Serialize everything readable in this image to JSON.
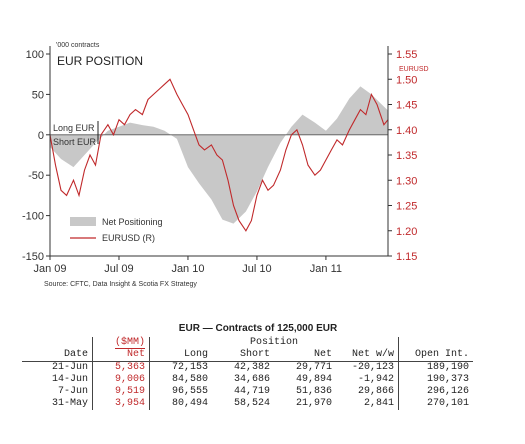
{
  "chart_data": {
    "type": "area",
    "title": "EUR POSITION",
    "units_note": "'000 contracts",
    "right_axis_label": "EURUSD",
    "source": "Source: CFTC, Data Insight & Scotia FX Strategy",
    "left_axis": {
      "ylim": [
        -150,
        100
      ],
      "ticks": [
        "100",
        "50",
        "0",
        "-50",
        "-100",
        "-150"
      ],
      "tick_values": [
        100,
        50,
        0,
        -50,
        -100,
        -150
      ]
    },
    "right_axis": {
      "ylim": [
        1.15,
        1.55
      ],
      "ticks": [
        "1.55",
        "1.50",
        "1.45",
        "1.40",
        "1.35",
        "1.30",
        "1.25",
        "1.20",
        "1.15"
      ],
      "tick_values": [
        1.55,
        1.5,
        1.45,
        1.4,
        1.35,
        1.3,
        1.25,
        1.2,
        1.15
      ]
    },
    "x_axis": {
      "ticks": [
        "Jan 09",
        "Jul 09",
        "Jan 10",
        "Jul 10",
        "Jan 11"
      ],
      "tick_values": [
        2009.0,
        2009.5,
        2010.0,
        2010.5,
        2011.0
      ],
      "xlim": [
        2009.0,
        2011.45
      ]
    },
    "annotations": {
      "long": "Long EUR",
      "short": "Short EUR"
    },
    "legend": [
      "Net Positioning",
      "EURUSD (R)"
    ],
    "legend_position": "bottom-left",
    "series": [
      {
        "name": "Net Positioning",
        "axis": "left",
        "color": "#c8c8c8",
        "x": [
          2009.0,
          2009.08,
          2009.17,
          2009.25,
          2009.33,
          2009.42,
          2009.5,
          2009.58,
          2009.67,
          2009.75,
          2009.83,
          2009.92,
          2010.0,
          2010.08,
          2010.17,
          2010.25,
          2010.33,
          2010.42,
          2010.5,
          2010.58,
          2010.67,
          2010.75,
          2010.83,
          2010.92,
          2011.0,
          2011.08,
          2011.17,
          2011.25,
          2011.33,
          2011.42,
          2011.45
        ],
        "values": [
          -15,
          -30,
          -40,
          -25,
          -10,
          5,
          10,
          15,
          12,
          10,
          5,
          -5,
          -40,
          -60,
          -80,
          -105,
          -110,
          -95,
          -70,
          -40,
          -10,
          10,
          25,
          15,
          5,
          20,
          45,
          60,
          50,
          35,
          30
        ]
      },
      {
        "name": "EURUSD (R)",
        "axis": "right",
        "color": "#c0292b",
        "x": [
          2009.0,
          2009.04,
          2009.08,
          2009.12,
          2009.17,
          2009.21,
          2009.25,
          2009.29,
          2009.33,
          2009.37,
          2009.42,
          2009.46,
          2009.5,
          2009.54,
          2009.58,
          2009.62,
          2009.67,
          2009.71,
          2009.75,
          2009.79,
          2009.83,
          2009.87,
          2009.92,
          2009.96,
          2010.0,
          2010.04,
          2010.08,
          2010.12,
          2010.17,
          2010.21,
          2010.25,
          2010.29,
          2010.33,
          2010.37,
          2010.42,
          2010.46,
          2010.5,
          2010.54,
          2010.58,
          2010.62,
          2010.67,
          2010.71,
          2010.75,
          2010.79,
          2010.83,
          2010.87,
          2010.92,
          2010.96,
          2011.0,
          2011.04,
          2011.08,
          2011.12,
          2011.17,
          2011.21,
          2011.25,
          2011.29,
          2011.33,
          2011.37,
          2011.42,
          2011.45
        ],
        "values": [
          1.39,
          1.33,
          1.28,
          1.27,
          1.3,
          1.27,
          1.32,
          1.35,
          1.33,
          1.39,
          1.41,
          1.39,
          1.42,
          1.41,
          1.43,
          1.44,
          1.43,
          1.46,
          1.47,
          1.48,
          1.49,
          1.5,
          1.47,
          1.45,
          1.43,
          1.4,
          1.37,
          1.36,
          1.37,
          1.35,
          1.34,
          1.3,
          1.25,
          1.22,
          1.2,
          1.22,
          1.27,
          1.3,
          1.28,
          1.29,
          1.32,
          1.36,
          1.39,
          1.4,
          1.37,
          1.33,
          1.31,
          1.32,
          1.34,
          1.36,
          1.38,
          1.37,
          1.4,
          1.42,
          1.44,
          1.43,
          1.47,
          1.45,
          1.41,
          1.42
        ]
      }
    ]
  },
  "table": {
    "title": "EUR — Contracts of 125,000 EUR",
    "smm_label": "($MM)",
    "position_label": "Position",
    "columns": [
      "Date",
      "Net",
      "Long",
      "Short",
      "Net",
      "Net w/w",
      "Open Int."
    ],
    "rows": [
      [
        "21-Jun",
        "5,363",
        "72,153",
        "42,382",
        "29,771",
        "-20,123",
        "189,190"
      ],
      [
        "14-Jun",
        "9,006",
        "84,580",
        "34,686",
        "49,894",
        "-1,942",
        "190,373"
      ],
      [
        "7-Jun",
        "9,519",
        "96,555",
        "44,719",
        "51,836",
        "29,866",
        "296,126"
      ],
      [
        "31-May",
        "3,954",
        "80,494",
        "58,524",
        "21,970",
        "2,841",
        "270,101"
      ]
    ]
  }
}
